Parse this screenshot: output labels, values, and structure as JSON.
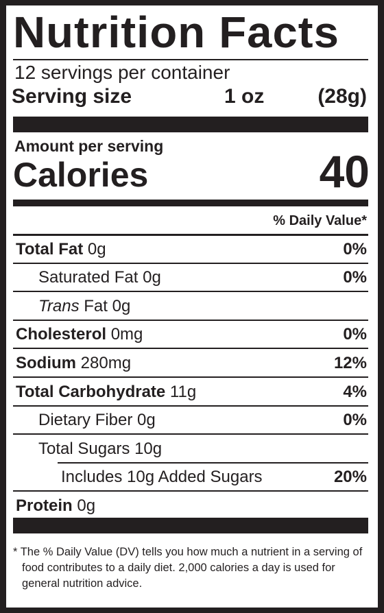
{
  "title": "Nutrition Facts",
  "servings": "12 servings per container",
  "serving_size": {
    "label": "Serving size",
    "amount": "1 oz",
    "grams": "(28g)"
  },
  "amount_per_serving": "Amount per serving",
  "calories": {
    "label": "Calories",
    "value": "40"
  },
  "daily_value_header": "% Daily Value*",
  "nutrients": [
    {
      "name": "Total Fat",
      "amount": "0g",
      "dv": "0%"
    },
    {
      "name": "Saturated Fat",
      "amount": "0g",
      "dv": "0%"
    },
    {
      "name_italic": "Trans",
      "name": "Fat",
      "amount": "0g"
    },
    {
      "name": "Cholesterol",
      "amount": "0mg",
      "dv": "0%"
    },
    {
      "name": "Sodium",
      "amount": "280mg",
      "dv": "12%"
    },
    {
      "name": "Total Carbohydrate",
      "amount": "11g",
      "dv": "4%"
    },
    {
      "name": "Dietary Fiber",
      "amount": "0g",
      "dv": "0%"
    },
    {
      "name": "Total Sugars",
      "amount": "10g"
    },
    {
      "name": "Includes 10g Added Sugars",
      "dv": "20%"
    },
    {
      "name": "Protein",
      "amount": "0g"
    }
  ],
  "footnote": "* The % Daily Value (DV) tells you how much a nutrient in a serving of food contributes to a daily diet. 2,000 calories a day is used for general nutrition advice."
}
